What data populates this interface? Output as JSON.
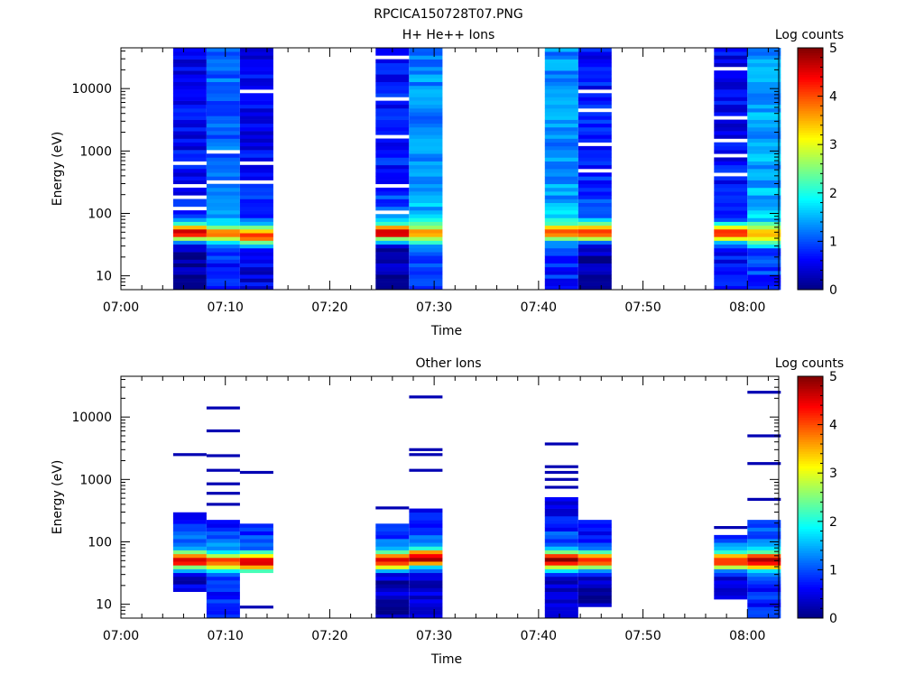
{
  "figure_title": "RPCICA150728T07.PNG",
  "chart_data": [
    {
      "type": "heatmap",
      "title": "H+ He++ Ions",
      "xlabel": "Time",
      "ylabel": "Energy (eV)",
      "x_ticks": [
        "07:00",
        "07:10",
        "07:20",
        "07:30",
        "07:40",
        "07:50",
        "08:00"
      ],
      "x_range_minutes": [
        0,
        63
      ],
      "y_scale": "log",
      "y_ticks": [
        "10",
        "100",
        "1000",
        "10000"
      ],
      "y_range": [
        6,
        45000
      ],
      "grid": false,
      "colorbar": {
        "label": "Log counts",
        "range": [
          0,
          5
        ],
        "ticks": [
          "0",
          "1",
          "2",
          "3",
          "4",
          "5"
        ]
      },
      "segments": [
        {
          "start_min": 5.0,
          "end_min": 8.2,
          "peak_eV": 50,
          "peak_log": 4.6,
          "bg_log": 0.6,
          "tail_log": 1.3,
          "lo_log": 0.2,
          "gaps_eV": [
            120,
            180,
            280,
            650
          ],
          "sparse": []
        },
        {
          "start_min": 8.2,
          "end_min": 11.4,
          "peak_eV": 48,
          "peak_log": 3.6,
          "bg_log": 1.1,
          "tail_log": 1.8,
          "lo_log": 0.8,
          "gaps_eV": [
            300,
            1000
          ],
          "sparse": []
        },
        {
          "start_min": 11.4,
          "end_min": 14.6,
          "peak_eV": 45,
          "peak_log": 4.2,
          "bg_log": 0.6,
          "tail_log": 1.4,
          "lo_log": 0.5,
          "gaps_eV": [
            310,
            620,
            9500
          ],
          "sparse": []
        },
        {
          "start_min": 24.4,
          "end_min": 27.6,
          "peak_eV": 50,
          "peak_log": 4.7,
          "bg_log": 0.7,
          "tail_log": 1.6,
          "lo_log": 0.2,
          "gaps_eV": [
            110,
            260,
            1700,
            7000,
            30000
          ],
          "sparse": []
        },
        {
          "start_min": 27.6,
          "end_min": 30.8,
          "peak_eV": 48,
          "peak_log": 3.7,
          "bg_log": 1.3,
          "tail_log": 2.0,
          "lo_log": 0.9,
          "gaps_eV": [],
          "sparse": []
        },
        {
          "start_min": 40.6,
          "end_min": 43.8,
          "peak_eV": 50,
          "peak_log": 3.8,
          "bg_log": 1.3,
          "tail_log": 1.9,
          "lo_log": 0.8,
          "gaps_eV": [],
          "sparse": []
        },
        {
          "start_min": 43.8,
          "end_min": 47.0,
          "peak_eV": 50,
          "peak_log": 4.4,
          "bg_log": 0.7,
          "tail_log": 1.5,
          "lo_log": 0.2,
          "gaps_eV": [
            480,
            1200,
            4500,
            8500
          ],
          "sparse": []
        },
        {
          "start_min": 56.8,
          "end_min": 60.0,
          "peak_eV": 50,
          "peak_log": 4.3,
          "bg_log": 0.6,
          "tail_log": 1.3,
          "lo_log": 0.7,
          "gaps_eV": [
            450,
            900,
            1400,
            3200,
            20000
          ],
          "sparse": []
        },
        {
          "start_min": 60.0,
          "end_min": 63.2,
          "peak_eV": 45,
          "peak_log": 3.7,
          "bg_log": 1.4,
          "tail_log": 2.0,
          "lo_log": 0.9,
          "gaps_eV": [],
          "sparse": []
        }
      ]
    },
    {
      "type": "heatmap",
      "title": "Other Ions",
      "xlabel": "Time",
      "ylabel": "Energy (eV)",
      "x_ticks": [
        "07:00",
        "07:10",
        "07:20",
        "07:30",
        "07:40",
        "07:50",
        "08:00"
      ],
      "x_range_minutes": [
        0,
        63
      ],
      "y_scale": "log",
      "y_ticks": [
        "10",
        "100",
        "1000",
        "10000"
      ],
      "y_range": [
        6,
        45000
      ],
      "grid": false,
      "colorbar": {
        "label": "Log counts",
        "range": [
          0,
          5
        ],
        "ticks": [
          "0",
          "1",
          "2",
          "3",
          "4",
          "5"
        ]
      },
      "segments": [
        {
          "start_min": 5.0,
          "end_min": 8.2,
          "peak_eV": 50,
          "peak_log": 4.4,
          "bg_log": 0.5,
          "tail_log": 2.2,
          "lo_log": 0.4,
          "lo_cut_eV": 15,
          "hi_cut_eV": 300,
          "gaps_eV": [],
          "sparse": [
            2500
          ]
        },
        {
          "start_min": 8.2,
          "end_min": 11.4,
          "peak_eV": 48,
          "peak_log": 4.0,
          "bg_log": 0.6,
          "tail_log": 1.8,
          "lo_log": 0.8,
          "lo_cut_eV": 6,
          "hi_cut_eV": 230,
          "gaps_eV": [
            280
          ],
          "sparse": [
            400,
            600,
            850,
            1400,
            2400,
            6000,
            14000
          ]
        },
        {
          "start_min": 11.4,
          "end_min": 14.6,
          "peak_eV": 48,
          "peak_log": 4.5,
          "bg_log": 0.6,
          "tail_log": 1.6,
          "lo_log": 0.9,
          "lo_cut_eV": 33,
          "hi_cut_eV": 190,
          "gaps_eV": [],
          "sparse": [
            9,
            1300
          ]
        },
        {
          "start_min": 24.4,
          "end_min": 27.6,
          "peak_eV": 50,
          "peak_log": 4.6,
          "bg_log": 0.5,
          "tail_log": 1.9,
          "lo_log": 0.3,
          "lo_cut_eV": 6,
          "hi_cut_eV": 190,
          "gaps_eV": [],
          "sparse": [
            350
          ]
        },
        {
          "start_min": 27.6,
          "end_min": 30.8,
          "peak_eV": 55,
          "peak_log": 4.8,
          "bg_log": 0.6,
          "tail_log": 1.8,
          "lo_log": 0.4,
          "lo_cut_eV": 6,
          "hi_cut_eV": 350,
          "gaps_eV": [],
          "sparse": [
            1400,
            2500,
            3000,
            21000
          ]
        },
        {
          "start_min": 40.6,
          "end_min": 43.8,
          "peak_eV": 50,
          "peak_log": 4.9,
          "bg_log": 0.5,
          "tail_log": 1.9,
          "lo_log": 0.3,
          "lo_cut_eV": 6,
          "hi_cut_eV": 500,
          "gaps_eV": [],
          "sparse": [
            750,
            1000,
            1300,
            1600,
            3700
          ]
        },
        {
          "start_min": 43.8,
          "end_min": 47.0,
          "peak_eV": 50,
          "peak_log": 4.5,
          "bg_log": 0.4,
          "tail_log": 1.6,
          "lo_log": 0.3,
          "lo_cut_eV": 9,
          "hi_cut_eV": 210,
          "gaps_eV": [],
          "sparse": []
        },
        {
          "start_min": 56.8,
          "end_min": 60.0,
          "peak_eV": 50,
          "peak_log": 4.4,
          "bg_log": 0.5,
          "tail_log": 1.7,
          "lo_log": 0.4,
          "lo_cut_eV": 12,
          "hi_cut_eV": 130,
          "gaps_eV": [],
          "sparse": [
            170
          ]
        },
        {
          "start_min": 60.0,
          "end_min": 63.2,
          "peak_eV": 50,
          "peak_log": 4.7,
          "bg_log": 0.6,
          "tail_log": 2.0,
          "lo_log": 0.8,
          "lo_cut_eV": 6,
          "hi_cut_eV": 220,
          "gaps_eV": [],
          "sparse": [
            480,
            1800,
            5000,
            25000
          ]
        }
      ]
    }
  ]
}
